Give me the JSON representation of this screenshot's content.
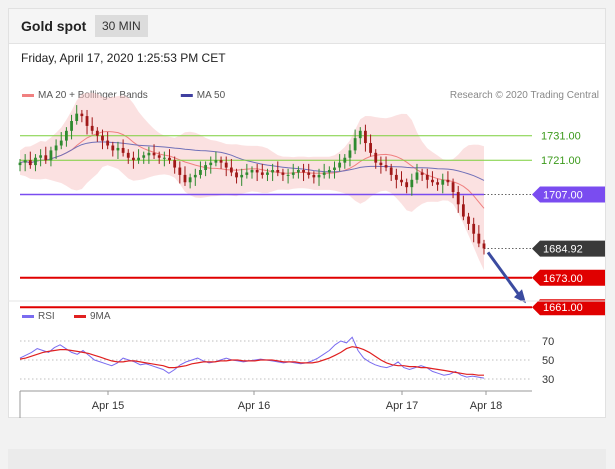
{
  "header": {
    "title": "Gold spot",
    "timeframe": "30 MIN"
  },
  "timestamp": "Friday, April 17, 2020 1:25:53 PM CET",
  "legend": {
    "items": [
      {
        "label": "MA 20 + Bollinger Bands",
        "color": "#f08080"
      },
      {
        "label": "MA 50",
        "color": "#3f3fa0"
      }
    ],
    "credit": "Research © 2020 Trading Central"
  },
  "colors": {
    "green_level": "#7ccf3c",
    "resistance": "#7a4cf0",
    "support": "#e00000",
    "current": "#3a3a3a",
    "candle_up": "#2f8a2f",
    "candle_down": "#a01818",
    "arrow": "#3b4ba0",
    "rsi": "#7a6cf0",
    "rsi_ma": "#e02020"
  },
  "chart_data": [
    {
      "type": "line",
      "title": "Gold spot",
      "x_tick_labels": [
        "Apr 15",
        "Apr 16",
        "Apr 17",
        "Apr 18"
      ],
      "ylim": [
        1650,
        1750
      ],
      "series": [
        {
          "name": "Price",
          "values": [
            1720,
            1721,
            1719,
            1722,
            1723,
            1721,
            1725,
            1727,
            1729,
            1733,
            1737,
            1740,
            1739,
            1735,
            1733,
            1731,
            1729,
            1727,
            1725,
            1726,
            1724,
            1722,
            1721,
            1722,
            1723,
            1724,
            1723,
            1722,
            1722,
            1721,
            1718,
            1715,
            1712,
            1714,
            1715,
            1717,
            1719,
            1720,
            1721,
            1720,
            1718,
            1716,
            1714,
            1715,
            1716,
            1717,
            1716,
            1715,
            1716,
            1717,
            1716,
            1715,
            1715,
            1716,
            1717,
            1716,
            1715,
            1714,
            1715,
            1716,
            1717,
            1718,
            1720,
            1722,
            1725,
            1730,
            1733,
            1728,
            1724,
            1720,
            1719,
            1718,
            1715,
            1713,
            1712,
            1710,
            1713,
            1716,
            1715,
            1713,
            1712,
            1711,
            1713,
            1712,
            1708,
            1703,
            1698,
            1695,
            1691,
            1687,
            1685
          ]
        }
      ],
      "levels": [
        {
          "label": "1731.00",
          "value": 1731,
          "style": "green"
        },
        {
          "label": "1721.00",
          "value": 1721,
          "style": "green"
        },
        {
          "label": "1707.00",
          "value": 1707,
          "style": "resistance"
        },
        {
          "label": "1684.92",
          "value": 1684.92,
          "style": "current"
        },
        {
          "label": "1673.00",
          "value": 1673,
          "style": "support"
        },
        {
          "label": "1661.00",
          "value": 1661,
          "style": "support"
        }
      ],
      "target": 1661
    },
    {
      "type": "line",
      "title": "",
      "legend": [
        "RSI",
        "9MA"
      ],
      "y_ticks": [
        70,
        50,
        30
      ],
      "ylim": [
        20,
        80
      ],
      "series": [
        {
          "name": "RSI",
          "values": [
            52,
            55,
            58,
            62,
            60,
            58,
            63,
            66,
            62,
            58,
            56,
            60,
            55,
            50,
            48,
            46,
            44,
            47,
            52,
            50,
            48,
            45,
            46,
            44,
            42,
            40,
            36,
            40,
            45,
            48,
            50,
            52,
            49,
            47,
            48,
            50,
            52,
            50,
            49,
            48,
            49,
            50,
            51,
            50,
            49,
            48,
            47,
            48,
            47,
            46,
            47,
            49,
            52,
            56,
            60,
            66,
            70,
            68,
            74,
            60,
            52,
            48,
            45,
            43,
            42,
            44,
            48,
            42,
            40,
            42,
            44,
            42,
            38,
            36,
            34,
            35,
            38,
            34,
            32,
            33,
            32,
            31
          ]
        },
        {
          "name": "9MA",
          "values": [
            51,
            52,
            54,
            56,
            58,
            59,
            60,
            61,
            61,
            60,
            59,
            58,
            57,
            55,
            53,
            51,
            49,
            48,
            48,
            49,
            49,
            48,
            47,
            46,
            45,
            44,
            42,
            42,
            43,
            44,
            46,
            47,
            48,
            48,
            48,
            49,
            49,
            50,
            50,
            49,
            49,
            49,
            50,
            50,
            50,
            49,
            48,
            48,
            48,
            47,
            47,
            47,
            48,
            50,
            52,
            55,
            58,
            62,
            64,
            63,
            61,
            58,
            54,
            50,
            47,
            45,
            44,
            44,
            43,
            43,
            42,
            42,
            41,
            40,
            39,
            38,
            37,
            36,
            35,
            35,
            34,
            34
          ]
        }
      ]
    }
  ]
}
